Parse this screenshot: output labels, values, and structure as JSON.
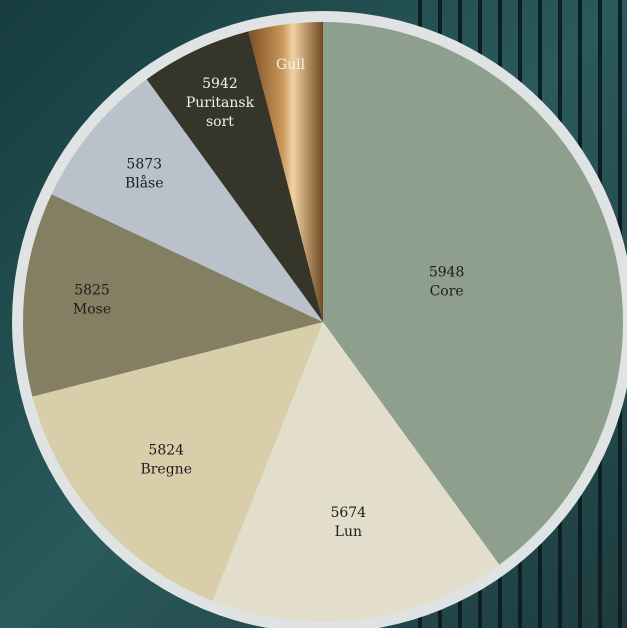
{
  "chart_data": {
    "type": "pie",
    "labels": [
      [
        "5948",
        "Core"
      ],
      [
        "5674",
        "Lun"
      ],
      [
        "5824",
        "Bregne"
      ],
      [
        "5825",
        "Mose"
      ],
      [
        "5873",
        "Blåse"
      ],
      [
        "5942",
        "Puritansk",
        "sort"
      ],
      [
        "Gull"
      ]
    ],
    "values": [
      40,
      16,
      15,
      11,
      8,
      6,
      4
    ],
    "colors": [
      "#8e9f8e",
      "#e3ddcb",
      "#d8ceaa",
      "#847f62",
      "#b9c2cb",
      "#36352a",
      "#9b6a36"
    ]
  }
}
